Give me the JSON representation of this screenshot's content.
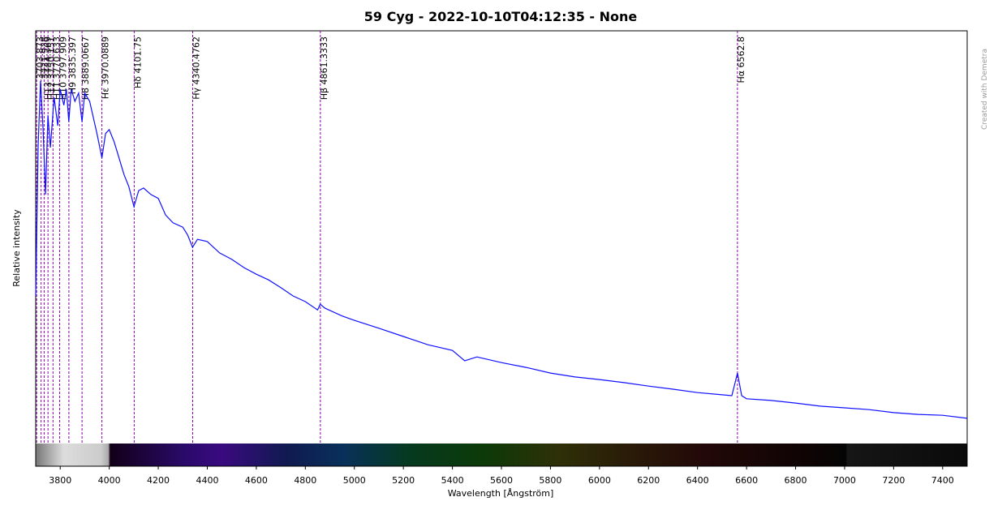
{
  "chart_data": {
    "type": "line",
    "title": "59 Cyg - 2022-10-10T04:12:35 - None",
    "x_label": "Wavelength [Ångström]",
    "y_label": "Relative intensity",
    "credit": "Created with Demetra",
    "color": "#1010ff",
    "marker_color": "#8a00a8",
    "xlim": [
      3700,
      7500
    ],
    "xticks": [
      3800,
      4000,
      4200,
      4400,
      4600,
      4800,
      5000,
      5200,
      5400,
      5600,
      5800,
      6000,
      6200,
      6400,
      6600,
      6800,
      7000,
      7200,
      7400
    ],
    "ylim": [
      0,
      1
    ],
    "x": [
      3700,
      3710,
      3720,
      3730,
      3740,
      3750,
      3760,
      3775,
      3790,
      3800,
      3815,
      3825,
      3835,
      3845,
      3860,
      3875,
      3889,
      3900,
      3920,
      3935,
      3950,
      3970,
      3985,
      4000,
      4020,
      4040,
      4060,
      4080,
      4101,
      4120,
      4140,
      4170,
      4200,
      4230,
      4260,
      4300,
      4320,
      4340,
      4360,
      4400,
      4450,
      4500,
      4550,
      4600,
      4650,
      4700,
      4750,
      4800,
      4850,
      4861,
      4880,
      4950,
      5000,
      5100,
      5200,
      5300,
      5400,
      5450,
      5500,
      5600,
      5700,
      5800,
      5900,
      6000,
      6100,
      6200,
      6300,
      6400,
      6500,
      6540,
      6562.8,
      6580,
      6600,
      6700,
      6800,
      6900,
      7000,
      7100,
      7200,
      7300,
      7400,
      7500
    ],
    "values": [
      0.391,
      0.736,
      0.885,
      0.773,
      0.624,
      0.806,
      0.732,
      0.847,
      0.782,
      0.866,
      0.829,
      0.866,
      0.791,
      0.866,
      0.838,
      0.857,
      0.791,
      0.857,
      0.838,
      0.801,
      0.764,
      0.708,
      0.764,
      0.773,
      0.745,
      0.708,
      0.67,
      0.642,
      0.596,
      0.633,
      0.639,
      0.624,
      0.615,
      0.577,
      0.559,
      0.549,
      0.531,
      0.503,
      0.521,
      0.516,
      0.49,
      0.475,
      0.456,
      0.441,
      0.428,
      0.41,
      0.391,
      0.378,
      0.359,
      0.372,
      0.363,
      0.345,
      0.335,
      0.317,
      0.298,
      0.279,
      0.266,
      0.242,
      0.251,
      0.238,
      0.227,
      0.214,
      0.205,
      0.199,
      0.192,
      0.184,
      0.177,
      0.169,
      0.164,
      0.162,
      0.214,
      0.162,
      0.155,
      0.151,
      0.145,
      0.138,
      0.134,
      0.13,
      0.123,
      0.119,
      0.117,
      0.11
    ],
    "lines": [
      {
        "x": 3703.873,
        "label": "3703.873"
      },
      {
        "x": 3721.938,
        "label": "3721.938"
      },
      {
        "x": 3734.369,
        "label": "H13 3734.369"
      },
      {
        "x": 3750.151,
        "label": "H12 3750.151"
      },
      {
        "x": 3770.633,
        "label": "H11 3770.633"
      },
      {
        "x": 3797.909,
        "label": "H10 3797.909"
      },
      {
        "x": 3835.397,
        "label": "H9 3835.397"
      },
      {
        "x": 3889.0667,
        "label": "H8 3889.0667"
      },
      {
        "x": 3970.0889,
        "label": "Hε 3970.0889"
      },
      {
        "x": 4101.75,
        "label": "Hδ 4101.75"
      },
      {
        "x": 4340.4762,
        "label": "Hγ 4340.4762"
      },
      {
        "x": 4861.3333,
        "label": "Hβ 4861.3333"
      },
      {
        "x": 6562.8,
        "label": "Hα 6562.8"
      }
    ]
  }
}
